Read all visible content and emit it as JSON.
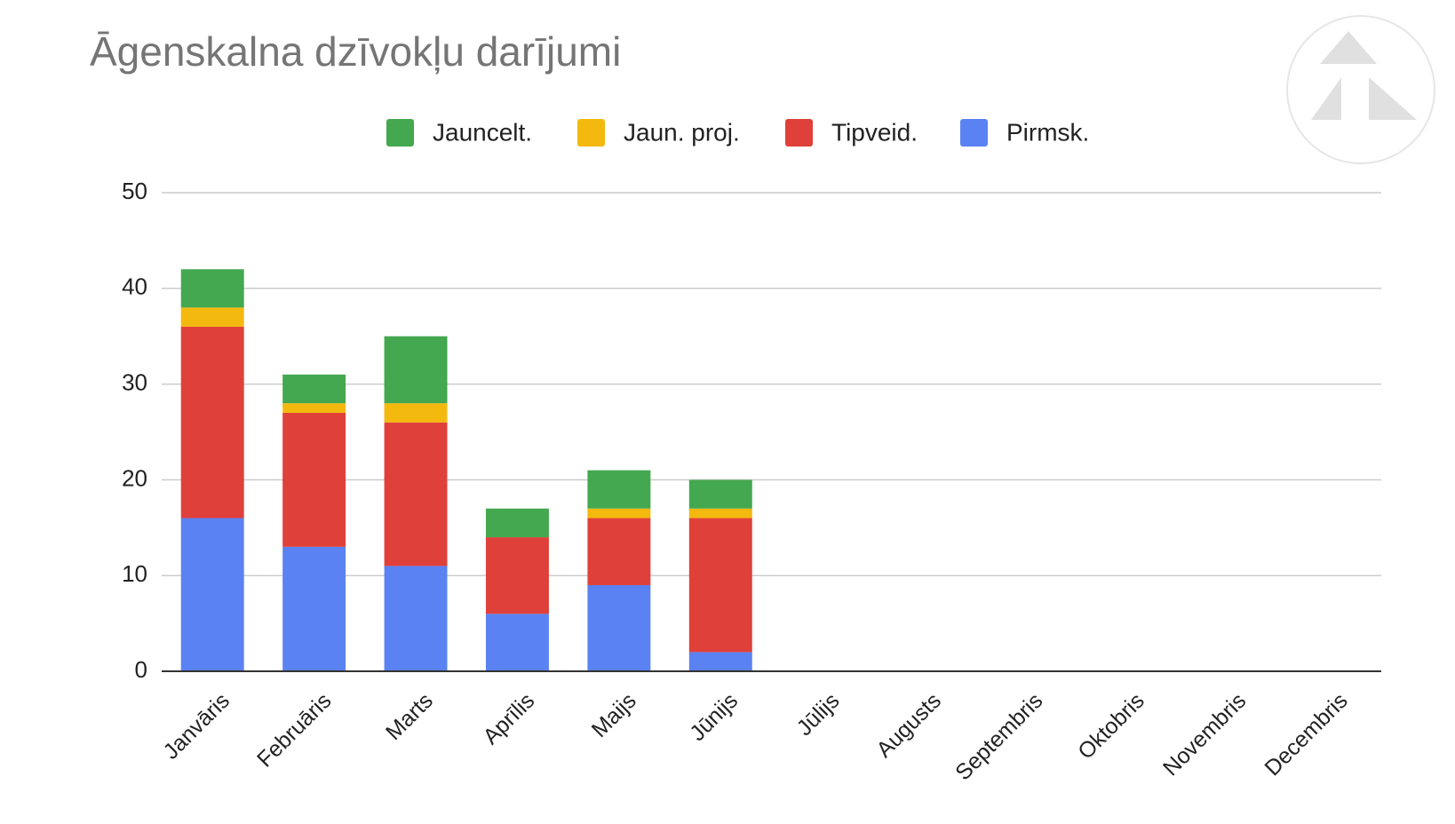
{
  "chart_data": {
    "type": "stacked_bar",
    "title": "Āgenskalna dzīvokļu darījumi",
    "categories": [
      "Janvāris",
      "Februāris",
      "Marts",
      "Aprīlis",
      "Maijs",
      "Jūnijs",
      "Jūlijs",
      "Augusts",
      "Septembris",
      "Oktobris",
      "Novembris",
      "Decembris"
    ],
    "series": [
      {
        "name": "Jauncelt.",
        "color": "#43a84f",
        "values": [
          4,
          3,
          7,
          3,
          4,
          3,
          null,
          null,
          null,
          null,
          null,
          null
        ]
      },
      {
        "name": "Jaun. proj.",
        "color": "#f4b90e",
        "values": [
          2,
          1,
          2,
          0,
          1,
          1,
          null,
          null,
          null,
          null,
          null,
          null
        ]
      },
      {
        "name": "Tipveid.",
        "color": "#e0403a",
        "values": [
          20,
          14,
          15,
          8,
          7,
          14,
          null,
          null,
          null,
          null,
          null,
          null
        ]
      },
      {
        "name": "Pirmsk.",
        "color": "#5a82f2",
        "values": [
          16,
          13,
          11,
          6,
          9,
          2,
          null,
          null,
          null,
          null,
          null,
          null
        ]
      }
    ],
    "ylim": [
      0,
      50
    ],
    "yticks": [
      0,
      10,
      20,
      30,
      40,
      50
    ],
    "grid": true,
    "legend": "top"
  }
}
